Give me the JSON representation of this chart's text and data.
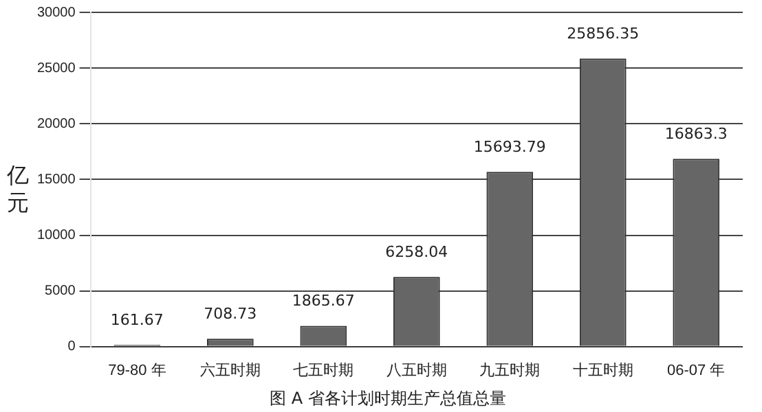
{
  "chart_data": {
    "type": "bar",
    "title": "图 A 省各计划时期生产总值总量",
    "ylabel": "亿元",
    "categories": [
      "79-80 年",
      "六五时期",
      "七五时期",
      "八五时期",
      "九五时期",
      "十五时期",
      "06-07 年"
    ],
    "values": [
      161.67,
      708.73,
      1865.67,
      6258.04,
      15693.79,
      25856.35,
      16863.3
    ],
    "color": "#666666",
    "ylim": [
      0,
      30000
    ],
    "yticks": [
      0,
      5000,
      10000,
      15000,
      20000,
      25000,
      30000
    ],
    "grid": "y",
    "data_labels": true,
    "legend": false
  }
}
